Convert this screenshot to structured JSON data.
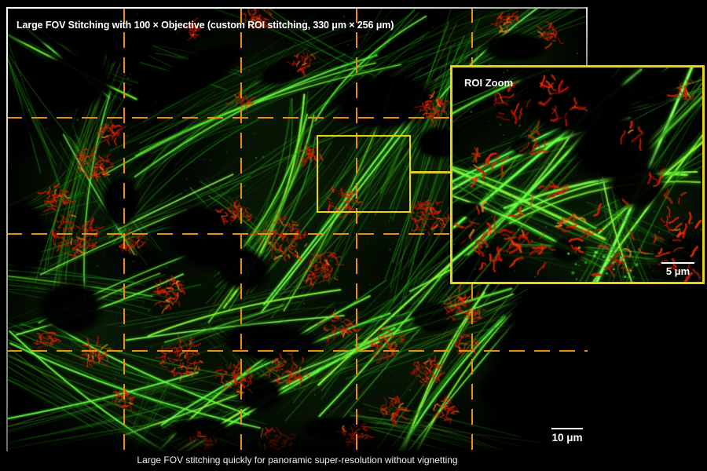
{
  "figure": {
    "title": "Large FOV Stitching with 100 × Objective (custom ROI stitching, 330 μm × 256 μm)",
    "caption": "Large FOV stitching quickly for panoramic super-resolution without vignetting",
    "main_image": {
      "scale_bar_label": "10 μm"
    },
    "roi_inset": {
      "label": "ROI Zoom",
      "scale_bar_label": "5 μm"
    },
    "colors": {
      "background": "#000000",
      "stitch_grid_orange": "#ED8D0C",
      "roi_outline_yellow": "#E9D40E",
      "frame_white": "#FFFFFF",
      "green_channel": "#3CC814",
      "red_channel": "#D62B0A"
    }
  }
}
